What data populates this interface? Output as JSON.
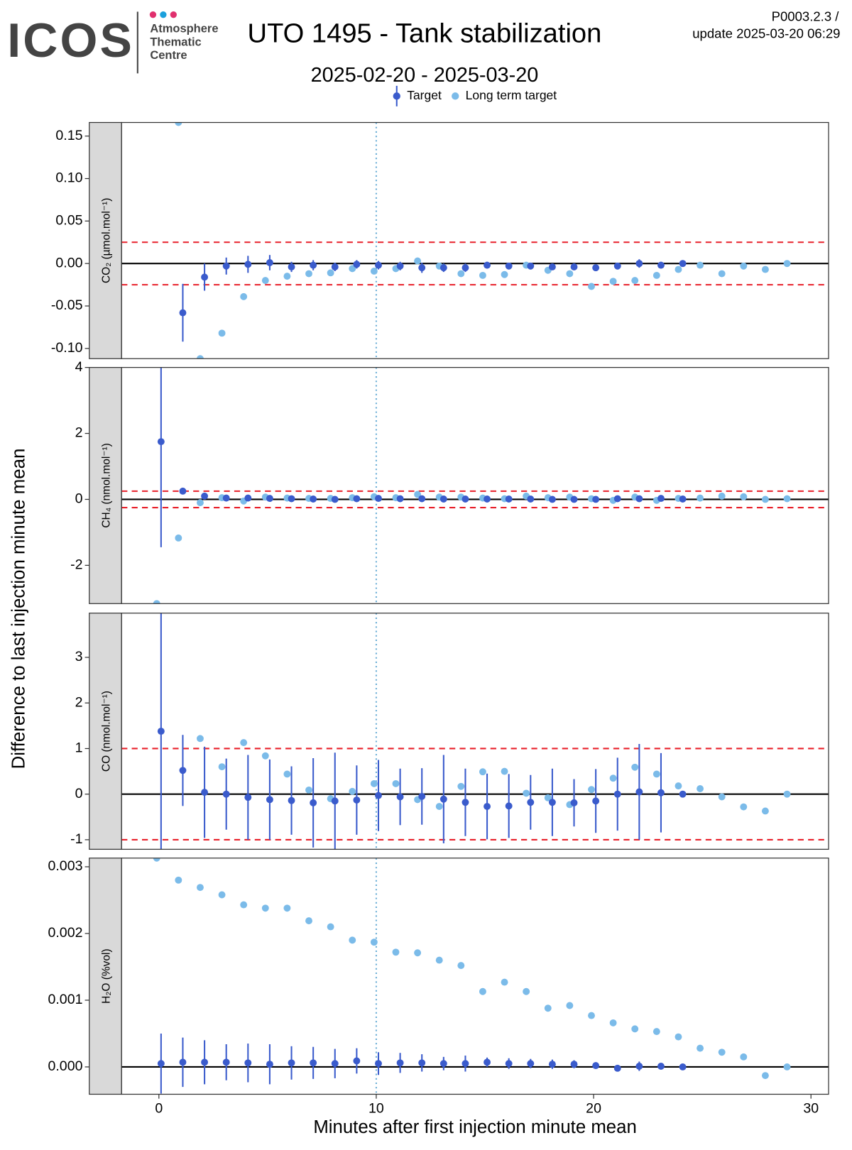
{
  "figure": {
    "logo": "ICOS",
    "logo_lines": [
      "Atmosphere",
      "Thematic",
      "Centre"
    ],
    "version": "P0003.2.3 /",
    "update": "update  2025-03-20 06:29",
    "title": "UTO 1495 - Tank stabilization",
    "subtitle": "2025-02-20 - 2025-03-20",
    "ylabel": "Difference to last injection minute mean",
    "xlabel": "Minutes after first injection minute mean",
    "xlim": [
      -1.72,
      30.81
    ],
    "xticks": [
      0,
      10,
      20,
      30
    ],
    "vline": 10,
    "vline_color": "#6baed6"
  },
  "chart_data": [
    {
      "type": "scatter",
      "strip_label": "CO₂ (µmol.mol⁻¹)",
      "ylim": [
        -0.112,
        0.166
      ],
      "yticks": [
        {
          "value": -0.1,
          "label": "-0.10"
        },
        {
          "value": -0.05,
          "label": "-0.05"
        },
        {
          "value": 0,
          "label": "0.00"
        },
        {
          "value": 0.05,
          "label": "0.05"
        },
        {
          "value": 0.1,
          "label": "0.10"
        },
        0.15
      ],
      "reference_line": 0,
      "thresholds": [
        -0.025,
        0.025
      ],
      "series": [
        {
          "name": "Long term target",
          "color": "#7bbbe9",
          "x": [
            -0.1,
            0.9,
            1.9,
            2.9,
            3.9,
            4.9,
            5.9,
            6.9,
            7.9,
            8.9,
            9.9,
            10.9,
            11.9,
            12.9,
            13.9,
            14.9,
            15.9,
            16.9,
            17.9,
            18.9,
            19.9,
            20.9,
            21.9,
            22.9,
            23.9,
            24.9,
            25.9,
            26.9,
            27.9,
            28.9
          ],
          "values": [
            null,
            0.166,
            -0.112,
            -0.082,
            -0.039,
            -0.02,
            -0.015,
            -0.012,
            -0.011,
            -0.006,
            -0.009,
            -0.006,
            0.003,
            -0.003,
            -0.012,
            -0.014,
            -0.013,
            -0.002,
            -0.008,
            -0.012,
            -0.027,
            -0.021,
            -0.02,
            -0.014,
            -0.007,
            -0.002,
            -0.012,
            -0.003,
            -0.007,
            0.0
          ]
        },
        {
          "name": "Target",
          "color": "#3a5bcc",
          "x": [
            0.1,
            1.1,
            2.1,
            3.1,
            4.1,
            5.1,
            6.1,
            7.1,
            8.1,
            9.1,
            10.1,
            11.1,
            12.1,
            13.1,
            14.1,
            15.1,
            16.1,
            17.1,
            18.1,
            19.1,
            20.1,
            21.1,
            22.1,
            23.1,
            24.1
          ],
          "values": [
            null,
            -0.058,
            -0.016,
            -0.003,
            -0.001,
            0.001,
            -0.004,
            -0.002,
            -0.004,
            -0.001,
            -0.002,
            -0.003,
            -0.005,
            -0.005,
            -0.005,
            -0.002,
            -0.003,
            -0.003,
            -0.004,
            -0.004,
            -0.005,
            -0.003,
            0.0,
            -0.002,
            0.0
          ],
          "errors": [
            null,
            0.034,
            0.016,
            0.01,
            0.01,
            0.009,
            0.006,
            0.006,
            0.005,
            0.005,
            0.005,
            0.005,
            0.006,
            0.005,
            0.005,
            0.004,
            0.004,
            0.004,
            0.003,
            0.004,
            0.004,
            0.004,
            0.005,
            0.004,
            0.002
          ]
        }
      ]
    },
    {
      "type": "scatter",
      "strip_label": "CH₄ (nmol.mol⁻¹)",
      "ylim": [
        -3.16,
        4.0
      ],
      "yticks": [
        -2,
        0,
        2,
        4
      ],
      "reference_line": 0,
      "thresholds": [
        -0.25,
        0.25
      ],
      "series": [
        {
          "name": "Long term target",
          "color": "#7bbbe9",
          "x": [
            -0.1,
            0.9,
            1.9,
            2.9,
            3.9,
            4.9,
            5.9,
            6.9,
            7.9,
            8.9,
            9.9,
            10.9,
            11.9,
            12.9,
            13.9,
            14.9,
            15.9,
            16.9,
            17.9,
            18.9,
            19.9,
            20.9,
            21.9,
            22.9,
            23.9,
            24.9,
            25.9,
            26.9,
            27.9,
            28.9
          ],
          "values": [
            -3.16,
            -1.17,
            -0.1,
            0.05,
            -0.05,
            0.07,
            0.04,
            0.03,
            0.03,
            0.05,
            0.08,
            0.05,
            0.15,
            0.07,
            0.07,
            0.04,
            0.02,
            0.1,
            0.05,
            0.07,
            0.02,
            -0.03,
            0.07,
            -0.03,
            0.03,
            0.04,
            0.1,
            0.08,
            0.0,
            0.02
          ]
        },
        {
          "name": "Target",
          "color": "#3a5bcc",
          "x": [
            0.1,
            1.1,
            2.1,
            3.1,
            4.1,
            5.1,
            6.1,
            7.1,
            8.1,
            9.1,
            10.1,
            11.1,
            12.1,
            13.1,
            14.1,
            15.1,
            16.1,
            17.1,
            18.1,
            19.1,
            20.1,
            21.1,
            22.1,
            23.1,
            24.1
          ],
          "values": [
            1.75,
            0.25,
            0.1,
            0.04,
            0.04,
            0.03,
            0.02,
            0.01,
            0.0,
            0.02,
            0.03,
            0.02,
            0.02,
            0.01,
            0.01,
            0.01,
            0.01,
            0.01,
            0.0,
            0.0,
            0.0,
            0.02,
            0.02,
            0.03,
            0.01
          ],
          "errors": [
            3.2,
            0.05,
            0.03,
            0.03,
            0.03,
            0.03,
            0.03,
            0.03,
            0.03,
            0.03,
            0.03,
            0.03,
            0.03,
            0.03,
            0.03,
            0.03,
            0.03,
            0.03,
            0.03,
            0.03,
            0.03,
            0.03,
            0.03,
            0.03,
            0.01
          ]
        }
      ]
    },
    {
      "type": "scatter",
      "strip_label": "CO (nmol.mol⁻¹)",
      "ylim": [
        -1.21,
        3.97
      ],
      "yticks": [
        -1,
        0,
        1,
        2,
        3
      ],
      "reference_line": 0,
      "thresholds": [
        -1,
        1
      ],
      "series": [
        {
          "name": "Long term target",
          "color": "#7bbbe9",
          "x": [
            -0.1,
            0.9,
            1.9,
            2.9,
            3.9,
            4.9,
            5.9,
            6.9,
            7.9,
            8.9,
            9.9,
            10.9,
            11.9,
            12.9,
            13.9,
            14.9,
            15.9,
            16.9,
            17.9,
            18.9,
            19.9,
            20.9,
            21.9,
            22.9,
            23.9,
            24.9,
            25.9,
            26.9,
            27.9,
            28.9
          ],
          "values": [
            null,
            null,
            1.22,
            0.6,
            1.13,
            0.84,
            0.44,
            0.09,
            -0.1,
            0.06,
            0.23,
            0.23,
            -0.12,
            -0.27,
            0.17,
            0.49,
            0.5,
            0.02,
            -0.08,
            -0.23,
            0.1,
            0.35,
            0.59,
            0.44,
            0.18,
            0.12,
            -0.06,
            -0.28,
            -0.37,
            0.0
          ]
        },
        {
          "name": "Target",
          "color": "#3a5bcc",
          "x": [
            0.1,
            1.1,
            2.1,
            3.1,
            4.1,
            5.1,
            6.1,
            7.1,
            8.1,
            9.1,
            10.1,
            11.1,
            12.1,
            13.1,
            14.1,
            15.1,
            16.1,
            17.1,
            18.1,
            19.1,
            20.1,
            21.1,
            22.1,
            23.1,
            24.1
          ],
          "values": [
            1.38,
            0.52,
            0.04,
            0.0,
            -0.07,
            -0.12,
            -0.14,
            -0.19,
            -0.15,
            -0.13,
            -0.03,
            -0.06,
            -0.05,
            -0.11,
            -0.18,
            -0.27,
            -0.26,
            -0.18,
            -0.18,
            -0.19,
            -0.15,
            0.0,
            0.05,
            0.03,
            0.0
          ],
          "errors": [
            2.6,
            0.78,
            1.0,
            0.78,
            0.93,
            0.88,
            0.75,
            0.98,
            1.06,
            0.76,
            0.78,
            0.62,
            0.62,
            0.97,
            0.74,
            0.72,
            0.7,
            0.6,
            0.74,
            0.52,
            0.7,
            0.8,
            1.05,
            0.87,
            0.02
          ]
        }
      ]
    },
    {
      "type": "scatter",
      "strip_label": "H₂O (%vol)",
      "ylim": [
        -0.00041,
        0.00313
      ],
      "yticks": [
        {
          "value": 0,
          "label": "0.000"
        },
        0.001,
        0.002,
        0.003
      ],
      "reference_line": 0,
      "series": [
        {
          "name": "Long term target",
          "color": "#7bbbe9",
          "x": [
            -0.1,
            0.9,
            1.9,
            2.9,
            3.9,
            4.9,
            5.9,
            6.9,
            7.9,
            8.9,
            9.9,
            10.9,
            11.9,
            12.9,
            13.9,
            14.9,
            15.9,
            16.9,
            17.9,
            18.9,
            19.9,
            20.9,
            21.9,
            22.9,
            23.9,
            24.9,
            25.9,
            26.9,
            27.9,
            28.9
          ],
          "values": [
            0.00313,
            0.0028,
            0.00269,
            0.00258,
            0.00243,
            0.00238,
            0.00238,
            0.00219,
            0.0021,
            0.0019,
            0.00187,
            0.00172,
            0.00171,
            0.0016,
            0.00152,
            0.00113,
            0.00127,
            0.00113,
            0.00088,
            0.00092,
            0.00077,
            0.00066,
            0.00057,
            0.00053,
            0.00045,
            0.00028,
            0.00022,
            0.00015,
            -0.00013,
            0.0
          ]
        },
        {
          "name": "Target",
          "color": "#3a5bcc",
          "x": [
            0.1,
            1.1,
            2.1,
            3.1,
            4.1,
            5.1,
            6.1,
            7.1,
            8.1,
            9.1,
            10.1,
            11.1,
            12.1,
            13.1,
            14.1,
            15.1,
            16.1,
            17.1,
            18.1,
            19.1,
            20.1,
            21.1,
            22.1,
            23.1,
            24.1
          ],
          "values": [
            5e-05,
            7e-05,
            7e-05,
            7e-05,
            6e-05,
            4e-05,
            6e-05,
            6e-05,
            5e-05,
            9e-05,
            5e-05,
            6e-05,
            6e-05,
            5e-05,
            5e-05,
            7e-05,
            5e-05,
            5e-05,
            4e-05,
            4e-05,
            2e-05,
            -2e-05,
            1e-05,
            1e-05,
            0.0
          ],
          "errors": [
            0.00045,
            0.00037,
            0.00033,
            0.00027,
            0.00029,
            0.0003,
            0.00025,
            0.00024,
            0.00022,
            0.00019,
            0.00017,
            0.00015,
            0.00013,
            0.0001,
            0.00012,
            7e-05,
            8e-05,
            7e-05,
            7e-05,
            6e-05,
            5e-05,
            4e-05,
            7e-05,
            3e-05,
            0.0
          ]
        }
      ]
    }
  ]
}
